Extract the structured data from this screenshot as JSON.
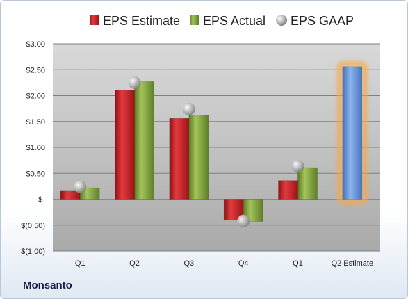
{
  "company": "Monsanto",
  "chart_data": {
    "type": "bar",
    "categories": [
      "Q1",
      "Q2",
      "Q3",
      "Q4",
      "Q1",
      "Q2 Estimate"
    ],
    "series": [
      {
        "name": "EPS Estimate",
        "color": "#c0272d",
        "values": [
          0.17,
          2.11,
          1.56,
          -0.4,
          0.36,
          null
        ]
      },
      {
        "name": "EPS Actual",
        "color": "#7fa03c",
        "values": [
          0.22,
          2.27,
          1.62,
          -0.43,
          0.61,
          null
        ]
      },
      {
        "name": "EPS GAAP",
        "type": "scatter",
        "color": "#a9a9a9",
        "values": [
          0.24,
          2.25,
          1.74,
          -0.42,
          0.64,
          null
        ]
      }
    ],
    "estimate_bar": {
      "category": "Q2 Estimate",
      "value": 2.56,
      "color": "#5b8fd6",
      "glow": "#f5a94a"
    },
    "y_ticks": [
      "$(1.00)",
      "$(0.50)",
      "$-",
      "$0.50",
      "$1.00",
      "$1.50",
      "$2.00",
      "$2.50",
      "$3.00"
    ],
    "y_tick_values": [
      -1.0,
      -0.5,
      0,
      0.5,
      1.0,
      1.5,
      2.0,
      2.5,
      3.0
    ],
    "ylim": [
      -1.0,
      3.0
    ],
    "grid": true,
    "legend_position": "top"
  }
}
